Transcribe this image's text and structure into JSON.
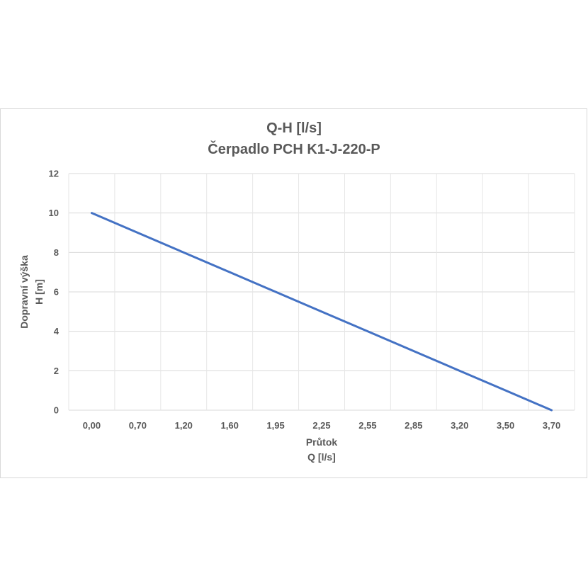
{
  "chart_data": {
    "type": "line",
    "title": "Q-H  [l/s]",
    "subtitle": "Čerpadlo PCH K1-J-220-P",
    "xlabel_line1": "Průtok",
    "xlabel_line2": "Q [l/s]",
    "ylabel_line1": "Dopravní výška",
    "ylabel_line2": "H [m]",
    "categories": [
      "0,00",
      "0,70",
      "1,20",
      "1,60",
      "1,95",
      "2,25",
      "2,55",
      "2,85",
      "3,20",
      "3,50",
      "3,70"
    ],
    "y_ticks": [
      "0",
      "2",
      "4",
      "6",
      "8",
      "10",
      "12"
    ],
    "ylim": [
      0,
      12
    ],
    "grid": true,
    "legend": "none",
    "series": [
      {
        "values": [
          10,
          9,
          8,
          7,
          6,
          5,
          4,
          3,
          2,
          1,
          0
        ],
        "color": "#4472c4"
      }
    ]
  }
}
